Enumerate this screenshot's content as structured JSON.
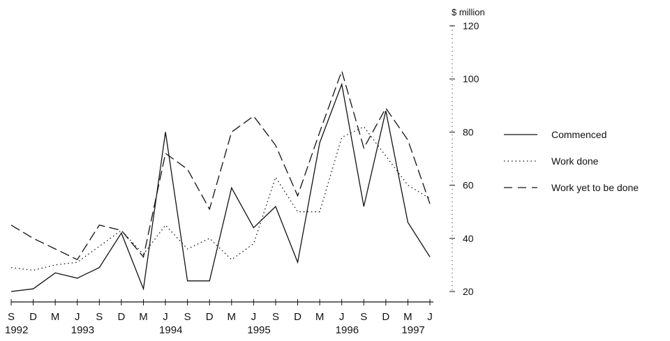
{
  "chart_data": {
    "type": "line",
    "ylabel": "$ million",
    "ylim": [
      20,
      120
    ],
    "yticks": [
      20,
      40,
      60,
      80,
      100,
      120
    ],
    "grid": false,
    "legend_position": "right",
    "x_month_labels": [
      "S",
      "D",
      "M",
      "J",
      "S",
      "D",
      "M",
      "J",
      "S",
      "D",
      "M",
      "J",
      "S",
      "D",
      "M",
      "J",
      "S",
      "D",
      "M",
      "J"
    ],
    "x_year_labels": [
      {
        "index": 0,
        "label": "1992"
      },
      {
        "index": 3,
        "label": "1993"
      },
      {
        "index": 7,
        "label": "1994"
      },
      {
        "index": 11,
        "label": "1995"
      },
      {
        "index": 15,
        "label": "1996"
      },
      {
        "index": 18,
        "label": "1997"
      }
    ],
    "series": [
      {
        "name": "Commenced",
        "style": "solid",
        "values": [
          20,
          21,
          27,
          25,
          29,
          42,
          21,
          80,
          24,
          24,
          59,
          44,
          52,
          31,
          76,
          98,
          52,
          88,
          46,
          33
        ]
      },
      {
        "name": "Work done",
        "style": "dotted",
        "values": [
          29,
          28,
          30,
          31,
          37,
          43,
          34,
          45,
          36,
          40,
          32,
          38,
          63,
          50,
          50,
          78,
          82,
          71,
          60,
          55
        ]
      },
      {
        "name": "Work yet to be done",
        "style": "dashed",
        "values": [
          45,
          40,
          36,
          32,
          45,
          43,
          33,
          72,
          66,
          51,
          80,
          86,
          75,
          56,
          80,
          103,
          74,
          89,
          77,
          53
        ]
      }
    ]
  }
}
